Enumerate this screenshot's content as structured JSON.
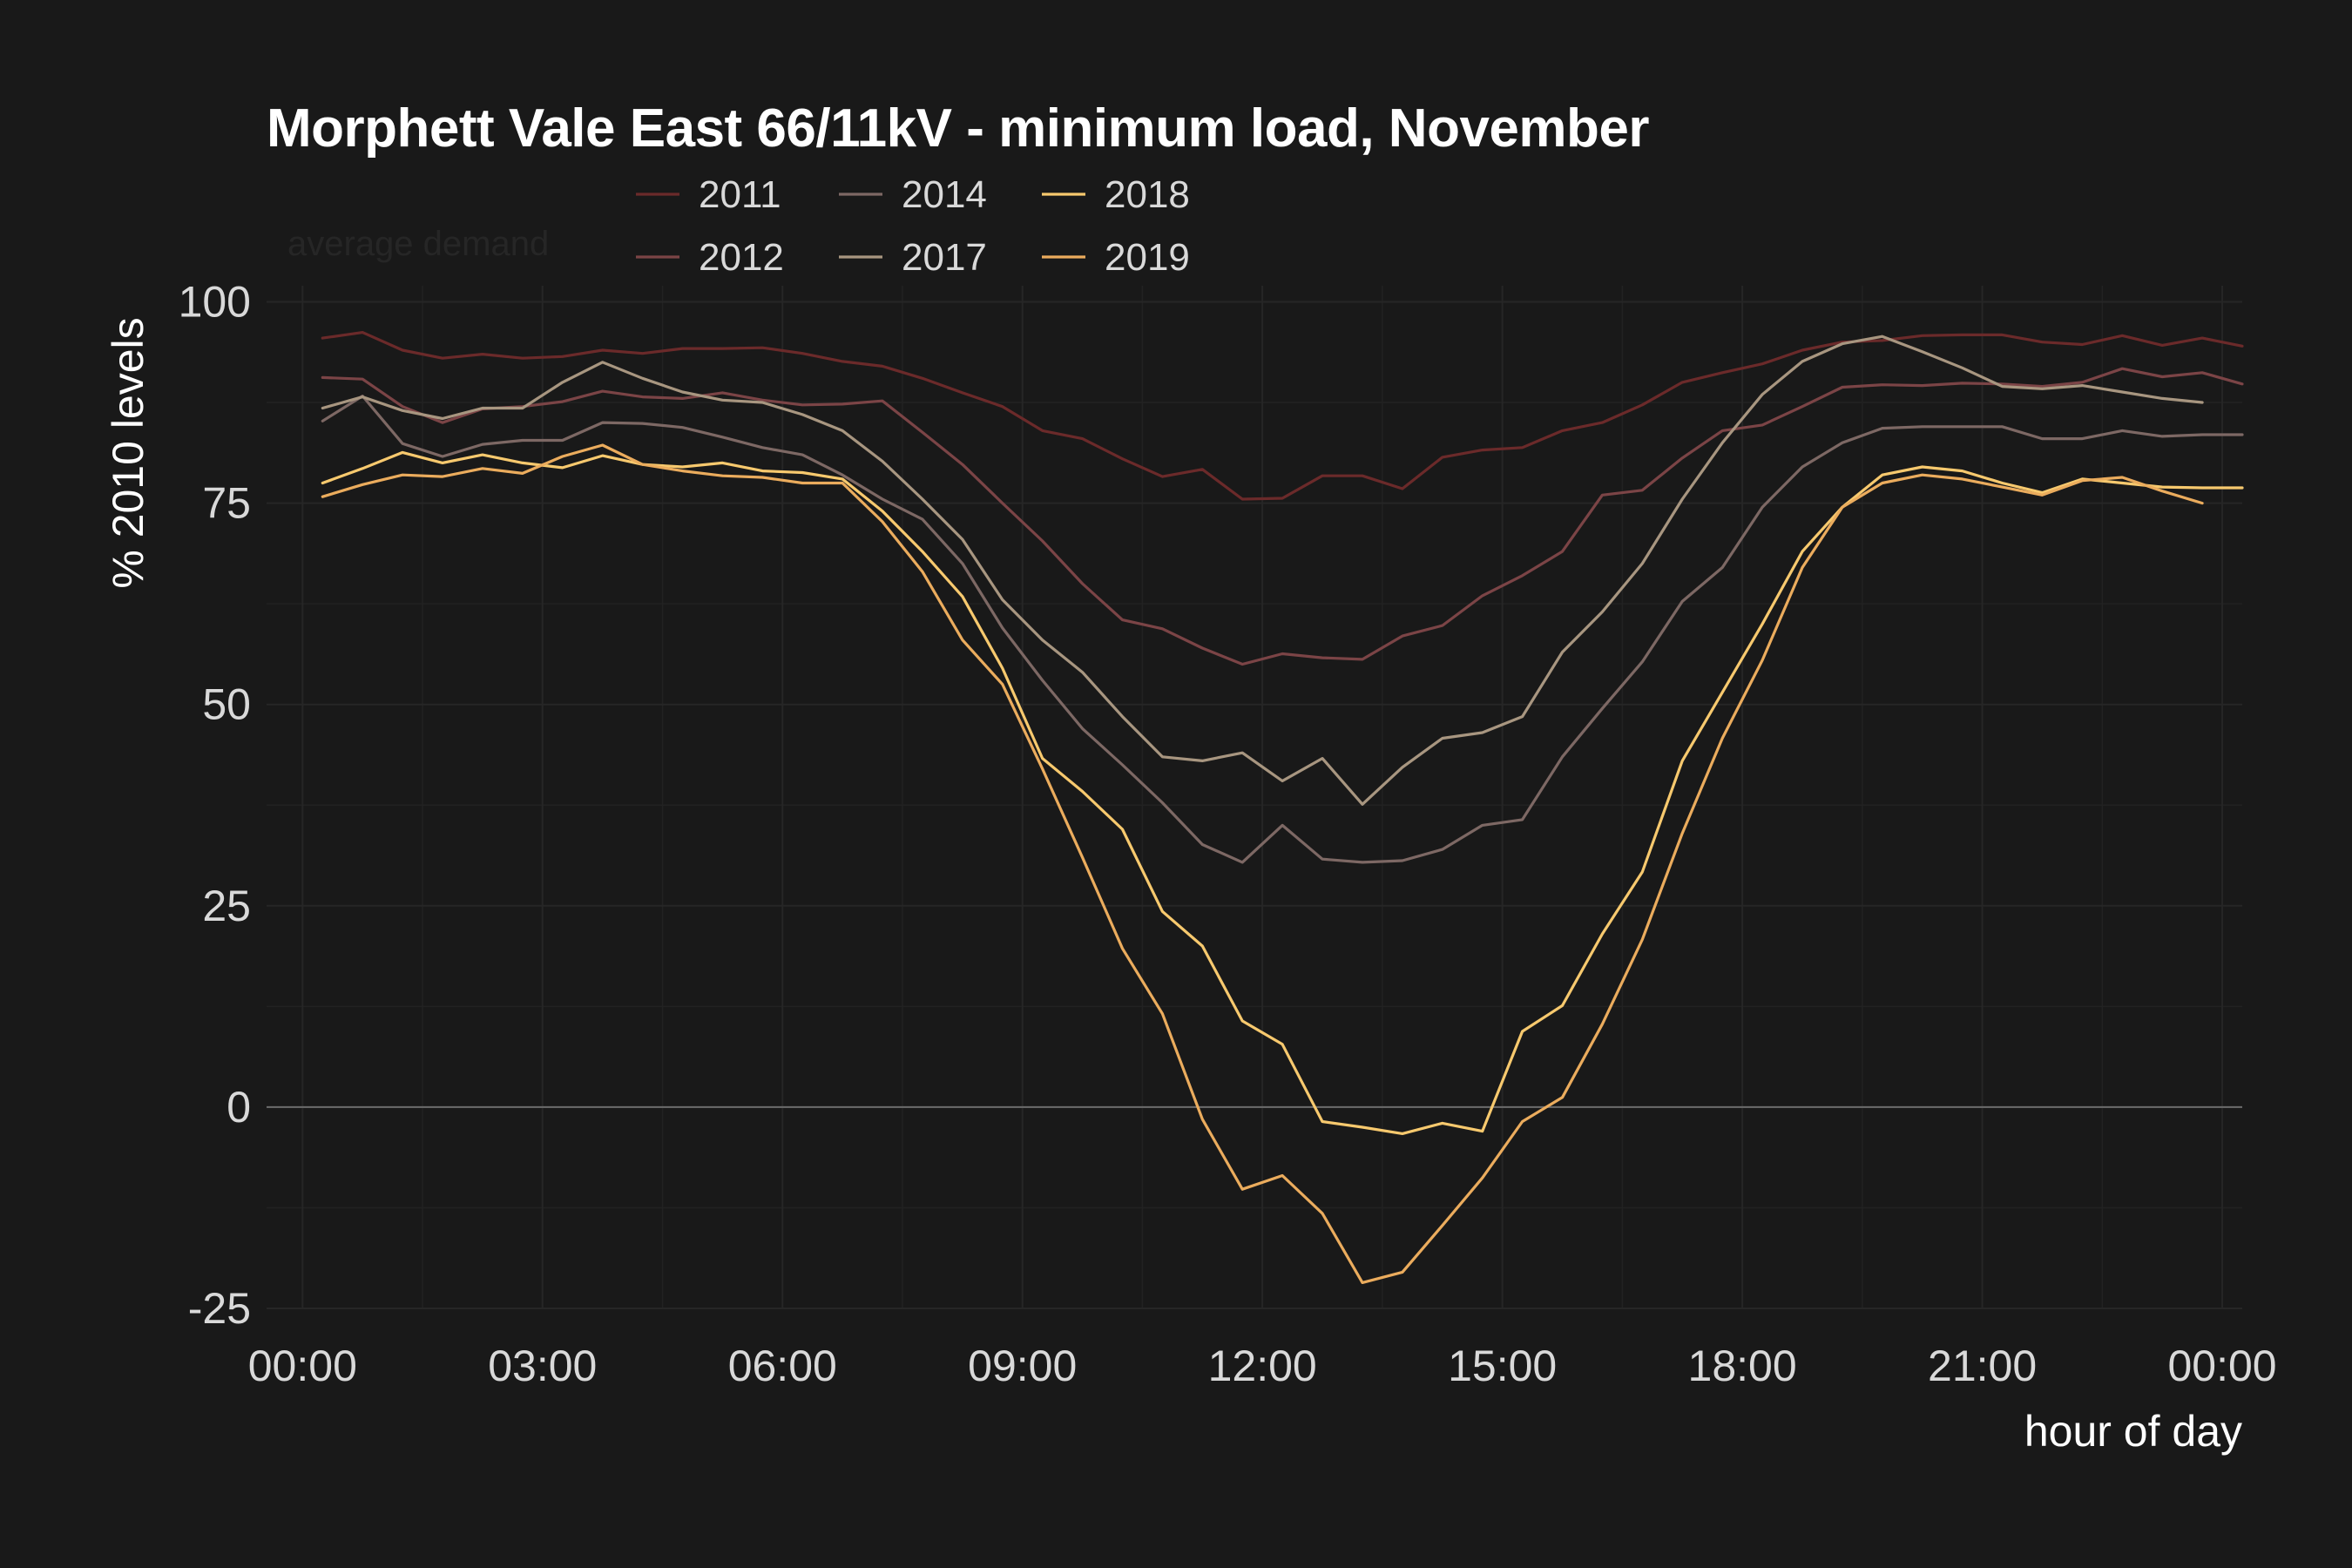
{
  "chart_data": {
    "type": "line",
    "title": "Morphett Vale East 66/11kV - minimum load, November",
    "subtitle": "average demand",
    "xlabel": "hour of day",
    "ylabel": "% 2010 levels",
    "xlim": [
      -0.45,
      24.25
    ],
    "ylim": [
      -25,
      102
    ],
    "x_ticks": [
      {
        "value": 0,
        "label": "00:00"
      },
      {
        "value": 3,
        "label": "03:00"
      },
      {
        "value": 6,
        "label": "06:00"
      },
      {
        "value": 9,
        "label": "09:00"
      },
      {
        "value": 12,
        "label": "12:00"
      },
      {
        "value": 15,
        "label": "15:00"
      },
      {
        "value": 18,
        "label": "18:00"
      },
      {
        "value": 21,
        "label": "21:00"
      },
      {
        "value": 24,
        "label": "00:00"
      }
    ],
    "y_ticks": [
      {
        "value": 100,
        "label": "100"
      },
      {
        "value": 75,
        "label": "75"
      },
      {
        "value": 50,
        "label": "50"
      },
      {
        "value": 25,
        "label": "25"
      },
      {
        "value": 0,
        "label": "0"
      },
      {
        "value": -25,
        "label": "-25"
      }
    ],
    "grid": true,
    "zero_line": true,
    "legend_position": "top",
    "x_start": 0.25,
    "x_step": 0.5,
    "series": [
      {
        "name": "2011",
        "color": "#6b2a2a",
        "values": [
          95.5,
          96.2,
          94,
          93,
          93.5,
          93,
          93.2,
          94,
          93.6,
          94.2,
          94.2,
          94.3,
          93.6,
          92.6,
          92,
          90.5,
          88.7,
          87,
          84,
          83,
          80.5,
          78.3,
          79.2,
          75.5,
          75.6,
          78.4,
          78.4,
          76.8,
          80.7,
          81.6,
          81.9,
          84,
          85,
          87.2,
          90,
          91.2,
          92.3,
          94,
          95,
          95.2,
          95.8,
          95.9,
          95.9,
          95,
          94.7,
          95.8,
          94.6,
          95.5,
          94.5
        ]
      },
      {
        "name": "2012",
        "color": "#7b4446",
        "values": [
          90.6,
          90.4,
          87,
          85,
          86.7,
          87,
          87.6,
          88.9,
          88.2,
          88,
          88.7,
          87.8,
          87.2,
          87.3,
          87.7,
          83.8,
          79.8,
          75,
          70.3,
          65,
          60.5,
          59.4,
          57,
          55,
          56.3,
          55.8,
          55.6,
          58.5,
          59.8,
          63.5,
          66,
          69,
          76,
          76.6,
          80.6,
          84,
          84.7,
          87,
          89.4,
          89.7,
          89.6,
          89.9,
          89.8,
          89.5,
          90,
          91.7,
          90.7,
          91.2,
          89.8
        ]
      },
      {
        "name": "2014",
        "color": "#7d6864",
        "values": [
          85.2,
          88.3,
          82.4,
          80.8,
          82.3,
          82.8,
          82.8,
          85,
          84.9,
          84.4,
          83.2,
          81.9,
          81,
          78.5,
          75.5,
          73,
          67.5,
          59.5,
          53,
          47,
          42.5,
          37.8,
          32.6,
          30.4,
          35,
          30.8,
          30.4,
          30.6,
          32,
          35,
          35.7,
          43.5,
          49.5,
          55.3,
          62.8,
          67,
          74.5,
          79.5,
          82.5,
          84.3,
          84.5,
          84.5,
          84.5,
          83,
          83,
          84,
          83.3,
          83.5,
          83.5
        ]
      },
      {
        "name": "2017",
        "color": "#a89680",
        "values": [
          86.8,
          88.2,
          86.5,
          85.5,
          86.8,
          86.8,
          90,
          92.5,
          90.5,
          88.8,
          87.8,
          87.5,
          86,
          84,
          80.2,
          75.5,
          70.5,
          63,
          58,
          54,
          48.5,
          43.5,
          43,
          44,
          40.5,
          43.3,
          37.6,
          42.2,
          45.8,
          46.5,
          48.5,
          56.5,
          61.5,
          67.5,
          75.5,
          82.5,
          88.5,
          92.6,
          94.8,
          95.7,
          93.8,
          91.8,
          89.5,
          89.2,
          89.6,
          88.8,
          88,
          87.5
        ]
      },
      {
        "name": "2018",
        "color": "#f7c96e",
        "values": [
          77.5,
          79.3,
          81.3,
          80,
          81,
          80,
          79.4,
          80.9,
          79.8,
          79.5,
          80,
          79,
          78.8,
          78,
          74,
          69,
          63.4,
          54.5,
          43.3,
          39.2,
          34.5,
          24.3,
          20,
          10.7,
          7.8,
          -1.8,
          -2.5,
          -3.3,
          -2,
          -3,
          9.4,
          12.6,
          21.5,
          29.2,
          43,
          51.5,
          60,
          69,
          74.5,
          78.5,
          79.5,
          79,
          77.5,
          76.3,
          78,
          77.5,
          77,
          76.9,
          76.9
        ]
      },
      {
        "name": "2019",
        "color": "#ebac5d",
        "values": [
          75.8,
          77.3,
          78.5,
          78.3,
          79.3,
          78.7,
          80.8,
          82.2,
          79.8,
          79,
          78.4,
          78.2,
          77.5,
          77.5,
          72.7,
          66.5,
          58,
          52.5,
          42,
          31,
          19.7,
          11.6,
          -1.5,
          -10.2,
          -8.5,
          -13.2,
          -21.8,
          -20.5,
          -14.7,
          -8.8,
          -1.8,
          1.2,
          10.3,
          20.8,
          34,
          45.8,
          55.5,
          67,
          74.5,
          77.5,
          78.5,
          78,
          77,
          76,
          77.8,
          78.2,
          76.5,
          75
        ]
      }
    ]
  }
}
